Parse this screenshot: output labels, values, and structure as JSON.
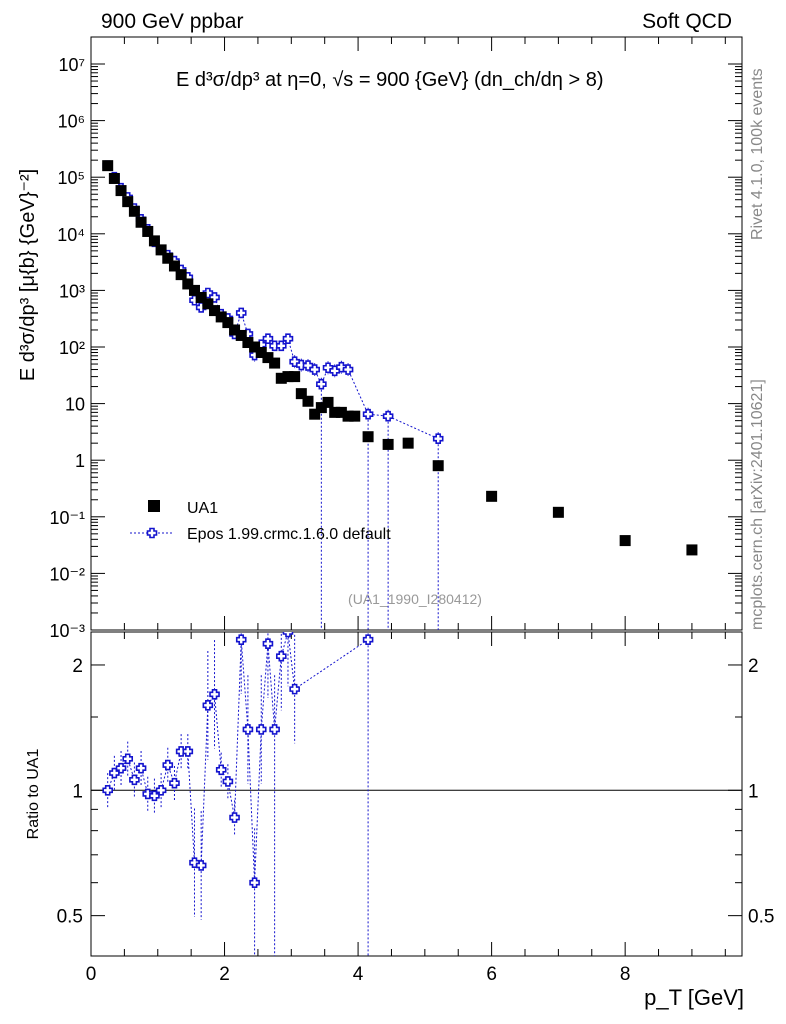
{
  "header": {
    "left": "900 GeV ppbar",
    "right": "Soft QCD"
  },
  "side": {
    "rivet": "Rivet 4.1.0,  100k events",
    "url": "mcplots.cern.ch [arXiv:2401.10621]"
  },
  "chart_data": [
    {
      "type": "scatter",
      "panel": "main",
      "title": "E  d³σ/dp³ at η=0, √s = 900 {GeV} (dn_ch/dη > 8)",
      "ylabel": "E d³σ/dp³ [μ{b} {GeV}⁻²]",
      "yscale": "log",
      "ylim": [
        0.001,
        30000000
      ],
      "xlim": [
        0,
        9.75
      ],
      "watermark": "(UA1_1990_I280412)",
      "legend_position": "lower-left",
      "y_tick_labels": [
        "10⁻³",
        "10⁻²",
        "10⁻¹",
        "1",
        "10",
        "10²",
        "10³",
        "10⁴",
        "10⁵",
        "10⁶",
        "10⁷"
      ],
      "series": [
        {
          "name": "UA1",
          "style": "black-square",
          "x": [
            0.25,
            0.35,
            0.45,
            0.55,
            0.65,
            0.75,
            0.85,
            0.95,
            1.05,
            1.15,
            1.25,
            1.35,
            1.45,
            1.55,
            1.65,
            1.75,
            1.85,
            1.95,
            2.05,
            2.15,
            2.25,
            2.35,
            2.45,
            2.55,
            2.65,
            2.75,
            2.85,
            2.95,
            3.05,
            3.15,
            3.25,
            3.35,
            3.45,
            3.55,
            3.65,
            3.75,
            3.85,
            3.95,
            4.15,
            4.45,
            4.75,
            5.2,
            6.0,
            7.0,
            8.0,
            9.0
          ],
          "y": [
            160000,
            95000,
            58000,
            37000,
            25000,
            16000,
            11000,
            7500,
            5200,
            3700,
            2700,
            1900,
            1300,
            1000,
            750,
            580,
            440,
            340,
            270,
            200,
            160,
            120,
            100,
            80,
            65,
            52,
            28,
            30,
            30,
            15,
            11,
            6.5,
            8.5,
            10.5,
            7,
            7,
            6,
            6,
            2.6,
            1.9,
            2.0,
            0.8,
            0.23,
            0.12,
            0.038,
            0.026
          ]
        },
        {
          "name": "Epos 1.99.crmc.1.6.0 default",
          "style": "blue-open-cross",
          "x": [
            0.25,
            0.35,
            0.45,
            0.55,
            0.65,
            0.75,
            0.85,
            0.95,
            1.05,
            1.15,
            1.25,
            1.35,
            1.45,
            1.55,
            1.65,
            1.75,
            1.85,
            1.95,
            2.05,
            2.15,
            2.25,
            2.35,
            2.45,
            2.55,
            2.65,
            2.75,
            2.85,
            2.95,
            3.05,
            3.15,
            3.25,
            3.35,
            3.45,
            3.55,
            3.65,
            3.75,
            3.85,
            4.15,
            4.45,
            5.2
          ],
          "y": [
            160000,
            100000,
            64000,
            44000,
            28000,
            18000,
            12000,
            7200,
            5200,
            4200,
            3300,
            2300,
            1700,
            670,
            500,
            900,
            750,
            380,
            320,
            170,
            400,
            170,
            72,
            110,
            140,
            105,
            105,
            140,
            55,
            48,
            47,
            40,
            22,
            43,
            38,
            44,
            40,
            6.5,
            6,
            2.4
          ]
        }
      ]
    },
    {
      "type": "scatter",
      "panel": "ratio",
      "ylabel": "Ratio to UA1",
      "xlabel": "p_T [GeV]",
      "yscale": "log",
      "ylim": [
        0.4,
        2.4
      ],
      "xlim": [
        0,
        9.75
      ],
      "x_tick_labels": [
        "0",
        "2",
        "4",
        "6",
        "8"
      ],
      "y_tick_labels": [
        "0.5",
        "1",
        "2"
      ],
      "series": [
        {
          "name": "Epos 1.99.crmc.1.6.0 default",
          "x": [
            0.25,
            0.35,
            0.45,
            0.55,
            0.65,
            0.75,
            0.85,
            0.95,
            1.05,
            1.15,
            1.25,
            1.35,
            1.45,
            1.55,
            1.65,
            1.75,
            1.85,
            1.95,
            2.05,
            2.15,
            2.25,
            2.35,
            2.45,
            2.55,
            2.65,
            2.75,
            2.85,
            2.95,
            3.05,
            4.15
          ],
          "y": [
            1.0,
            1.1,
            1.13,
            1.19,
            1.06,
            1.13,
            0.98,
            0.97,
            1.0,
            1.15,
            1.04,
            1.24,
            1.24,
            0.67,
            0.66,
            1.6,
            1.7,
            1.12,
            1.05,
            0.86,
            2.3,
            1.4,
            0.6,
            1.4,
            2.25,
            1.4,
            2.1,
            2.4,
            1.75,
            2.3
          ]
        }
      ]
    }
  ]
}
